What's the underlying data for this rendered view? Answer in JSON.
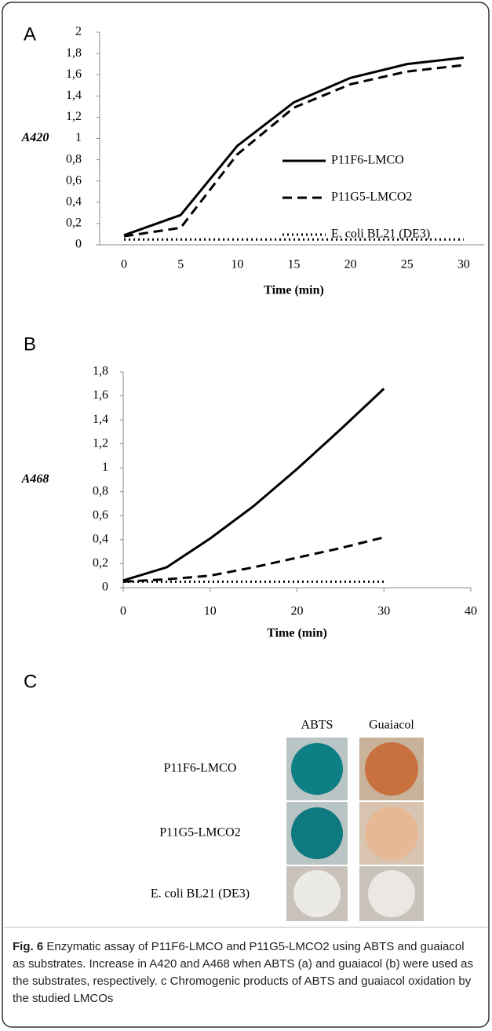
{
  "chart_data": [
    {
      "type": "line",
      "panel": "A",
      "categories": [
        "0",
        "5",
        "10",
        "15",
        "20",
        "25",
        "30"
      ],
      "xlabel": "Time (min)",
      "ylabel": "A420",
      "ylim": [
        0,
        2
      ],
      "yticks": [
        0,
        {
          "value": 0.2,
          "label": "0,2"
        },
        {
          "value": 0.4,
          "label": "0,4"
        },
        {
          "value": 0.6,
          "label": "0,6"
        },
        {
          "value": 0.8,
          "label": "0,8"
        },
        1,
        {
          "value": 1.2,
          "label": "1,2"
        },
        {
          "value": 1.4,
          "label": "1,4"
        },
        {
          "value": 1.6,
          "label": "1,6"
        },
        {
          "value": 1.8,
          "label": "1,8"
        },
        2
      ],
      "legend": "right",
      "series": [
        {
          "name": "P11F6-LMCO",
          "color": "#000000",
          "style": "solid",
          "values": [
            0.09,
            0.28,
            0.93,
            1.34,
            1.57,
            1.7,
            1.76
          ]
        },
        {
          "name": "P11G5-LMCO2",
          "color": "#000000",
          "style": "dashed",
          "values": [
            0.08,
            0.16,
            0.85,
            1.29,
            1.51,
            1.63,
            1.69
          ]
        },
        {
          "name": "E. coli BL21 (DE3)",
          "color": "#000000",
          "style": "dotted",
          "values": [
            0.05,
            0.05,
            0.05,
            0.05,
            0.05,
            0.05,
            0.05
          ]
        }
      ]
    },
    {
      "type": "line",
      "panel": "B",
      "x": [
        0,
        5,
        10,
        15,
        20,
        25,
        30
      ],
      "xlabel": "Time (min)",
      "ylabel": "A468",
      "xlim": [
        0,
        40
      ],
      "xticks": [
        0,
        10,
        20,
        30,
        40
      ],
      "ylim": [
        0,
        1.8
      ],
      "yticks": [
        0,
        {
          "value": 0.2,
          "label": "0,2"
        },
        {
          "value": 0.4,
          "label": "0,4"
        },
        {
          "value": 0.6,
          "label": "0,6"
        },
        {
          "value": 0.8,
          "label": "0,8"
        },
        1,
        {
          "value": 1.2,
          "label": "1,2"
        },
        {
          "value": 1.4,
          "label": "1,4"
        },
        {
          "value": 1.6,
          "label": "1,6"
        },
        {
          "value": 1.8,
          "label": "1,8"
        }
      ],
      "series": [
        {
          "color": "#000000",
          "style": "solid",
          "values": [
            0.06,
            0.17,
            0.41,
            0.68,
            0.99,
            1.32,
            1.66
          ]
        },
        {
          "color": "#000000",
          "style": "dashed",
          "values": [
            0.05,
            0.07,
            0.1,
            0.17,
            0.25,
            0.33,
            0.42
          ]
        },
        {
          "color": "#000000",
          "style": "dotted",
          "values": [
            0.05,
            0.05,
            0.05,
            0.05,
            0.05,
            0.05,
            0.05
          ]
        }
      ]
    }
  ],
  "panel_c": {
    "label": "C",
    "columns": [
      "ABTS",
      "Guaiacol"
    ],
    "rows": [
      "P11F6-LMCO",
      "P11G5-LMCO2",
      "E. coli BL21 (DE3)"
    ]
  },
  "caption": {
    "label": "Fig. 6",
    "text": "Enzymatic assay of P11F6-LMCO and P11G5-LMCO2 using ABTS and guaiacol as substrates. Increase in A420 and A468 when ABTS (a) and guaiacol (b) were used as the substrates, respectively. c Chromogenic products of ABTS and guaiacol oxidation by the studied LMCOs"
  }
}
